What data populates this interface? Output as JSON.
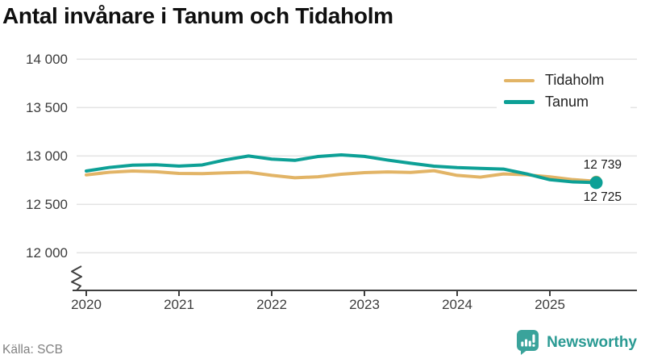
{
  "title": "Antal invånare i Tanum och Tidaholm",
  "source": "Källa: SCB",
  "branding": {
    "name": "Newsworthy",
    "color": "#2a9a93"
  },
  "chart_data": {
    "type": "line",
    "title": "Antal invånare i Tanum och Tidaholm",
    "xlabel": "",
    "ylabel": "",
    "grid": true,
    "legend_position": "top-right",
    "axis_break": true,
    "ylim": [
      12000,
      14000
    ],
    "xlim": [
      2020,
      2025.75
    ],
    "x": [
      2020,
      2020.25,
      2020.5,
      2020.75,
      2021,
      2021.25,
      2021.5,
      2021.75,
      2022,
      2022.25,
      2022.5,
      2022.75,
      2023,
      2023.25,
      2023.5,
      2023.75,
      2024,
      2024.25,
      2024.5,
      2024.75,
      2025,
      2025.25,
      2025.5
    ],
    "series": [
      {
        "name": "Tidaholm",
        "color": "#e2b466",
        "end_label": "12 739",
        "end_value": 12739,
        "values": [
          12805,
          12832,
          12845,
          12838,
          12820,
          12818,
          12826,
          12832,
          12800,
          12775,
          12786,
          12812,
          12828,
          12836,
          12830,
          12848,
          12800,
          12782,
          12815,
          12806,
          12785,
          12756,
          12739
        ]
      },
      {
        "name": "Tanum",
        "color": "#0da096",
        "end_label": "12 725",
        "end_value": 12725,
        "values": [
          12845,
          12882,
          12905,
          12910,
          12896,
          12908,
          12960,
          13000,
          12968,
          12955,
          12995,
          13012,
          12996,
          12958,
          12925,
          12895,
          12880,
          12872,
          12865,
          12815,
          12755,
          12732,
          12725
        ]
      }
    ],
    "yticks": [
      {
        "value": 14000,
        "label": "14 000"
      },
      {
        "value": 13500,
        "label": "13 500"
      },
      {
        "value": 13000,
        "label": "13 000"
      },
      {
        "value": 12500,
        "label": "12 500"
      },
      {
        "value": 12000,
        "label": "12 000"
      }
    ],
    "xticks": [
      {
        "value": 2020,
        "label": "2020"
      },
      {
        "value": 2021,
        "label": "2021"
      },
      {
        "value": 2022,
        "label": "2022"
      },
      {
        "value": 2023,
        "label": "2023"
      },
      {
        "value": 2024,
        "label": "2024"
      },
      {
        "value": 2025,
        "label": "2025"
      }
    ],
    "colors": {
      "grid": "#e3e3e3",
      "axis": "#3f3f3f",
      "tick_text": "#3c3c3c"
    }
  }
}
